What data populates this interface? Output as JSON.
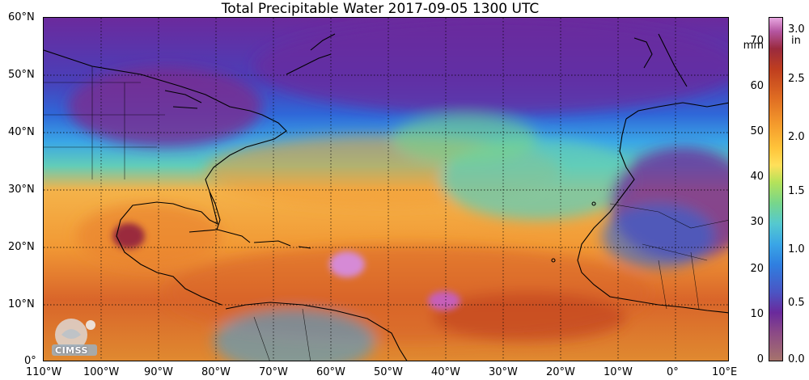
{
  "title": "Total Precipitable Water  2017-09-05 1300 UTC",
  "lat_labels": [
    "60°N",
    "50°N",
    "40°N",
    "30°N",
    "20°N",
    "10°N",
    "0°"
  ],
  "lon_labels": [
    "110°W",
    "100°W",
    "90°W",
    "80°W",
    "70°W",
    "60°W",
    "50°W",
    "40°W",
    "30°W",
    "20°W",
    "10°W",
    "0°",
    "10°E"
  ],
  "colorbar": {
    "mm_unit": "mm",
    "in_unit": "in",
    "mm_ticks": [
      "70",
      "60",
      "50",
      "40",
      "30",
      "20",
      "10",
      "0"
    ],
    "in_ticks": [
      "3.0",
      "2.5",
      "2.0",
      "1.5",
      "1.0",
      "0.5",
      "0.0"
    ]
  },
  "logo_text": "CIMSS",
  "colors": {
    "ocean_moist": "#f29a35",
    "ocean_very_moist": "#c8461f",
    "extreme": "#d68ad6",
    "moderate": "#62cdb8",
    "dry": "#2f67d8",
    "very_dry": "#6b2a9d"
  }
}
